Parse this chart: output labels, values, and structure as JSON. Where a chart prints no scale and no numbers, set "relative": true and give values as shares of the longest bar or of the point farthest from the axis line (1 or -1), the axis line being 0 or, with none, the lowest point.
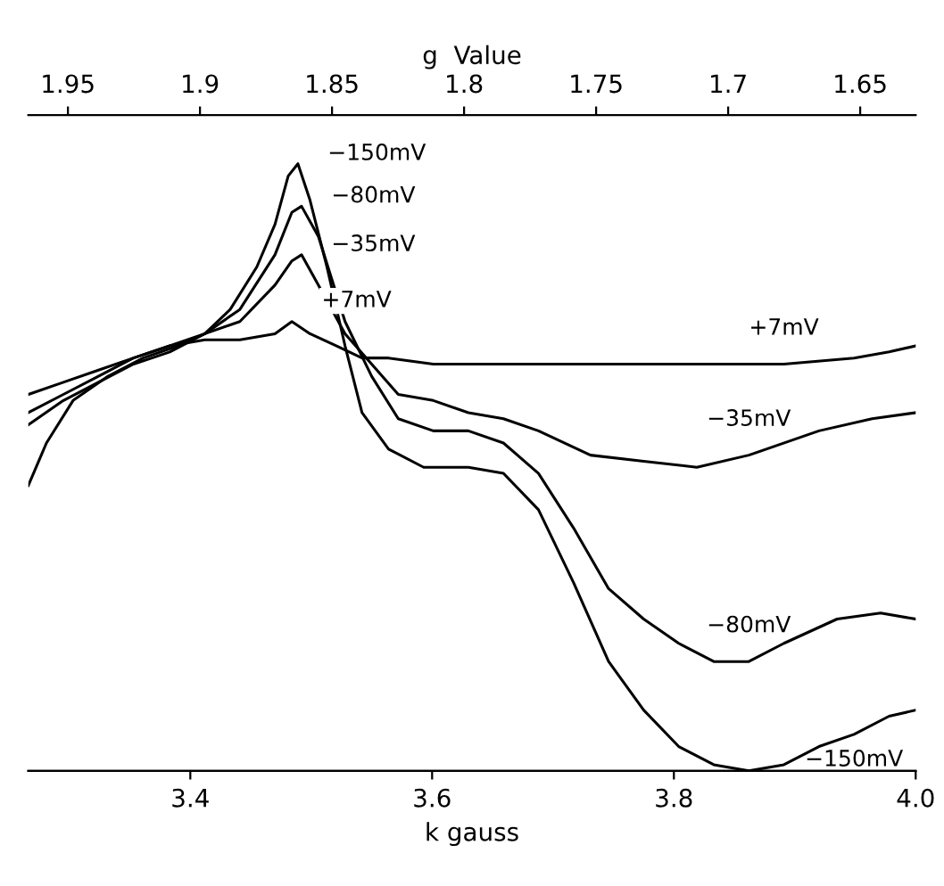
{
  "chart_data": {
    "type": "line",
    "relative": true,
    "xlabel": "k gauss",
    "x2label": "g  Value",
    "xlim": [
      3.266,
      4.0
    ],
    "xticks": [
      {
        "value": 3.4,
        "label": "3.4"
      },
      {
        "value": 3.6,
        "label": "3.6"
      },
      {
        "value": 3.8,
        "label": "3.8"
      },
      {
        "value": 4.0,
        "label": "4.0"
      }
    ],
    "x2lim": [
      1.965,
      1.629
    ],
    "x2ticks": [
      1.95,
      1.9,
      1.85,
      1.8,
      1.75,
      1.7,
      1.65
    ],
    "tick_labels": "x",
    "grid": false,
    "legend": false,
    "marker": "none",
    "line_style": "solid",
    "series": [
      {
        "name": "+7mV",
        "color": "#000000",
        "x": [
          3.266,
          3.295,
          3.324,
          3.353,
          3.383,
          3.412,
          3.441,
          3.47,
          3.484,
          3.499,
          3.521,
          3.542,
          3.564,
          3.601,
          3.659,
          3.717,
          3.775,
          3.833,
          3.891,
          3.949,
          3.978,
          4.0
        ],
        "values": [
          0.62,
          0.64,
          0.66,
          0.68,
          0.7,
          0.71,
          0.71,
          0.72,
          0.74,
          0.72,
          0.7,
          0.68,
          0.68,
          0.67,
          0.67,
          0.67,
          0.67,
          0.67,
          0.67,
          0.68,
          0.69,
          0.7
        ]
      },
      {
        "name": "−35mV",
        "color": "#000000",
        "x": [
          3.266,
          3.295,
          3.324,
          3.353,
          3.383,
          3.412,
          3.441,
          3.47,
          3.484,
          3.492,
          3.506,
          3.528,
          3.55,
          3.572,
          3.601,
          3.63,
          3.659,
          3.688,
          3.731,
          3.775,
          3.819,
          3.862,
          3.92,
          3.964,
          4.0
        ],
        "values": [
          0.59,
          0.62,
          0.65,
          0.68,
          0.7,
          0.72,
          0.74,
          0.8,
          0.84,
          0.85,
          0.8,
          0.72,
          0.67,
          0.62,
          0.61,
          0.59,
          0.58,
          0.56,
          0.52,
          0.51,
          0.5,
          0.52,
          0.56,
          0.58,
          0.59
        ]
      },
      {
        "name": "−80mV",
        "color": "#000000",
        "x": [
          3.266,
          3.295,
          3.324,
          3.353,
          3.383,
          3.412,
          3.441,
          3.47,
          3.484,
          3.492,
          3.506,
          3.528,
          3.55,
          3.572,
          3.601,
          3.63,
          3.659,
          3.688,
          3.717,
          3.746,
          3.775,
          3.804,
          3.833,
          3.862,
          3.891,
          3.935,
          3.971,
          4.0
        ],
        "values": [
          0.57,
          0.61,
          0.64,
          0.67,
          0.69,
          0.72,
          0.76,
          0.85,
          0.92,
          0.93,
          0.88,
          0.74,
          0.65,
          0.58,
          0.56,
          0.56,
          0.54,
          0.49,
          0.4,
          0.3,
          0.25,
          0.21,
          0.18,
          0.18,
          0.21,
          0.25,
          0.26,
          0.25
        ]
      },
      {
        "name": "−150mV",
        "color": "#000000",
        "x": [
          3.266,
          3.281,
          3.303,
          3.332,
          3.361,
          3.39,
          3.412,
          3.433,
          3.455,
          3.47,
          3.481,
          3.489,
          3.499,
          3.513,
          3.528,
          3.542,
          3.564,
          3.593,
          3.63,
          3.659,
          3.688,
          3.717,
          3.746,
          3.775,
          3.804,
          3.833,
          3.862,
          3.891,
          3.92,
          3.949,
          3.978,
          4.0
        ],
        "values": [
          0.47,
          0.54,
          0.61,
          0.65,
          0.68,
          0.7,
          0.72,
          0.76,
          0.83,
          0.9,
          0.98,
          1.0,
          0.94,
          0.83,
          0.7,
          0.59,
          0.53,
          0.5,
          0.5,
          0.49,
          0.43,
          0.31,
          0.18,
          0.1,
          0.04,
          0.01,
          0.0,
          0.01,
          0.04,
          0.06,
          0.09,
          0.1
        ]
      }
    ]
  }
}
